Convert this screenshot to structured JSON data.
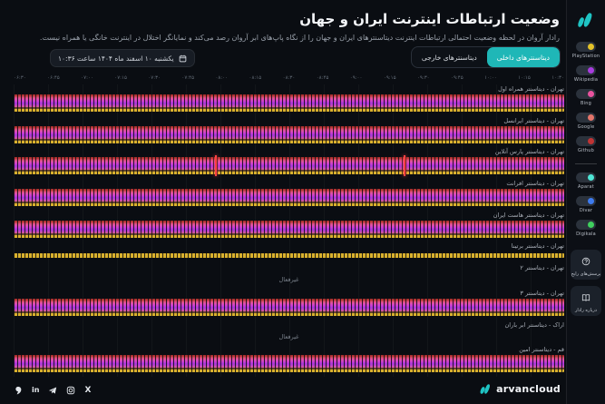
{
  "page": {
    "title": "وضعیت ارتباطات اینترنت ایران و جهان",
    "subtitle": "رادار آروان در لحظه وضعیت احتمالی ارتباطات اینترنت دیتاسنترهای ایران و جهان را از نگاه پاپ‌های ابر آروان رصد می‌کند و نمایانگر اختلال در اینترنت خانگی یا همراه نیست."
  },
  "controls": {
    "datetime": "یکشنبه ۱۰ اسفند ماه ۱۴۰۴ ساعت ۱۰:۳۶",
    "tab_internal": "دیتاسنترهای داخلی",
    "tab_external": "دیتاسنترهای خارجی",
    "active_tab": "internal"
  },
  "colors": {
    "accent_teal": "#1fb7b7",
    "anomaly_red": "#ff4343",
    "partial_yellow": "#d9b02e"
  },
  "legend": {
    "groups": [
      {
        "items": [
          {
            "label": "PlayStation",
            "color": "#e3c229",
            "enabled": true
          },
          {
            "label": "Wikipedia",
            "color": "#a93ce0",
            "enabled": true
          },
          {
            "label": "Bing",
            "color": "#e8539e",
            "enabled": true
          },
          {
            "label": "Google",
            "color": "#e4756a",
            "enabled": true
          },
          {
            "label": "Github",
            "color": "#c03434",
            "enabled": true
          }
        ]
      },
      {
        "items": [
          {
            "label": "Aparat",
            "color": "#4ee6d6",
            "enabled": true
          },
          {
            "label": "Divar",
            "color": "#3d7bf0",
            "enabled": true
          },
          {
            "label": "Digikala",
            "color": "#3fcf5e",
            "enabled": true
          }
        ]
      }
    ]
  },
  "sidebar_actions": [
    {
      "label": "پرسش‌های رایج",
      "icon": "question-circle-icon"
    },
    {
      "label": "درباره رادار",
      "icon": "book-icon"
    }
  ],
  "chart_data": {
    "type": "heatmap",
    "title": "وضعیت ارتباطات اینترنت ایران و جهان",
    "legend_position": "right-sidebar",
    "x_axis": "time",
    "x_ticks": [
      "۰۶:۳۰",
      "۰۶:۴۵",
      "۰۷:۰۰",
      "۰۷:۱۵",
      "۰۷:۳۰",
      "۰۷:۴۵",
      "۰۸:۰۰",
      "۰۸:۱۵",
      "۰۸:۳۰",
      "۰۸:۴۵",
      "۰۹:۰۰",
      "۰۹:۱۵",
      "۰۹:۳۰",
      "۰۹:۴۵",
      "۱۰:۰۰",
      "۱۰:۱۵",
      "۱۰:۳۰"
    ],
    "lane_palette_top_to_bottom": [
      "#c03434",
      "#e4756a",
      "#e8539e",
      "#a93ce0",
      "#e3c229"
    ],
    "rows": [
      {
        "label": "تهران - دیتاسنتر همراه اول",
        "status": "active"
      },
      {
        "label": "تهران - دیتاسنتر ایرانسل",
        "status": "active"
      },
      {
        "label": "تهران - دیتاسنتر پارس آنلاین",
        "status": "active",
        "anomalies_pct": [
          36.6,
          70.8
        ]
      },
      {
        "label": "تهران - دیتاسنتر افرانت",
        "status": "active"
      },
      {
        "label": "تهران - دیتاسنتر هاست ایران",
        "status": "active"
      },
      {
        "label": "تهران - دیتاسنتر برتینا",
        "status": "partial"
      },
      {
        "label": "تهران - دیتاسنتر ۲",
        "status": "inactive",
        "note": "غیرفعال"
      },
      {
        "label": "تهران - دیتاسنتر ۳",
        "status": "active"
      },
      {
        "label": "اراک - دیتاسنتر ابر باران",
        "status": "inactive",
        "note": "غیرفعال"
      },
      {
        "label": "قم - دیتاسنتر امین",
        "status": "active"
      }
    ]
  },
  "footer": {
    "brand": "arvancloud",
    "socials": [
      "virgool",
      "linkedin",
      "telegram",
      "instagram",
      "x"
    ]
  }
}
